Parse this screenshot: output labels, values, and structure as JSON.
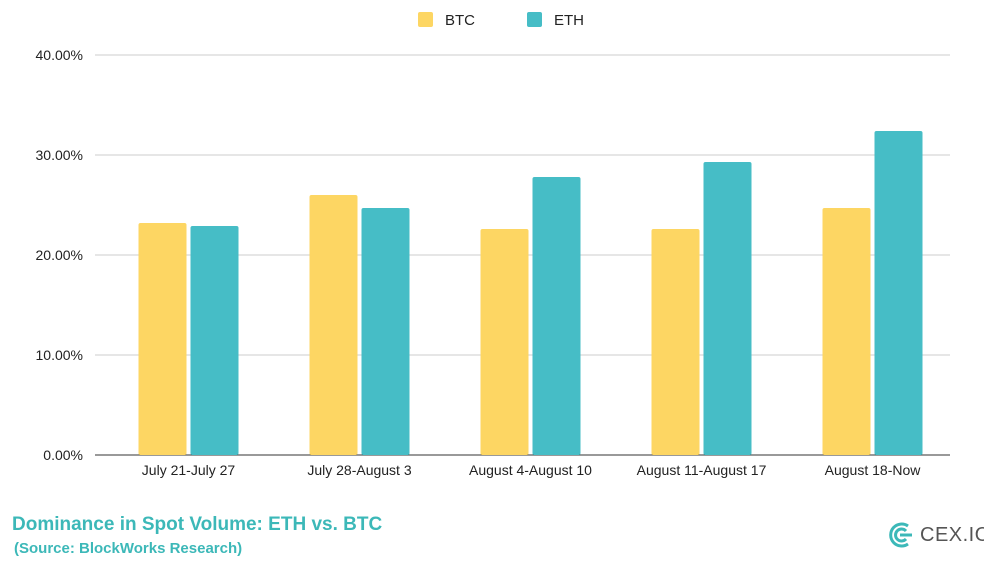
{
  "chart_data": {
    "type": "bar",
    "title": "Dominance in Spot Volume: ETH vs. BTC",
    "subtitle": "(Source: BlockWorks Research)",
    "categories": [
      "July 21-July 27",
      "July 28-August 3",
      "August 4-August 10",
      "August 11-August 17",
      "August 18-Now"
    ],
    "series": [
      {
        "name": "BTC",
        "color": "#fdd663",
        "values": [
          23.2,
          26.0,
          22.6,
          22.6,
          24.7
        ]
      },
      {
        "name": "ETH",
        "color": "#46bdc6",
        "values": [
          22.9,
          24.7,
          27.8,
          29.3,
          32.4
        ]
      }
    ],
    "yticks": [
      "0.00%",
      "10.00%",
      "20.00%",
      "30.00%",
      "40.00%"
    ],
    "ylim": [
      0,
      40
    ],
    "grid": true,
    "legend": "top"
  },
  "logo": {
    "text": "CEX.IO",
    "color": "#3cb8b8"
  }
}
